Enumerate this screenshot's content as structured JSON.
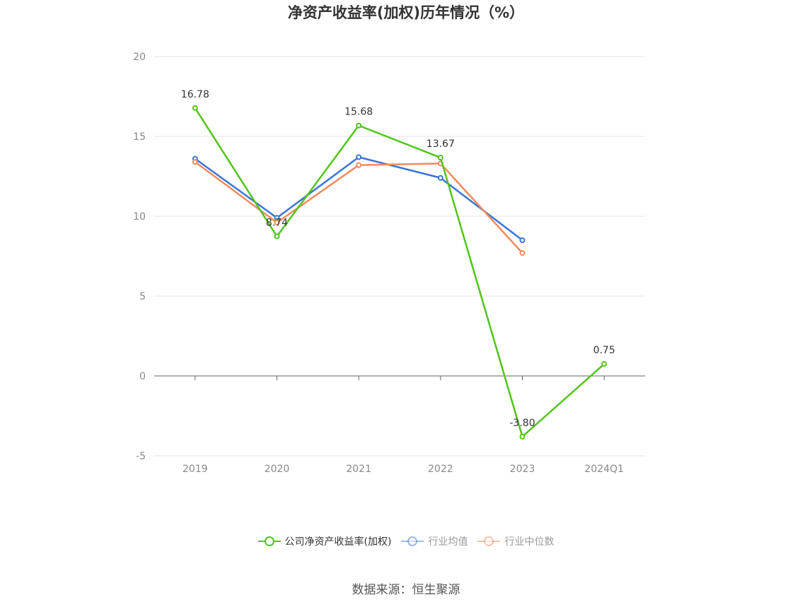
{
  "title": "净资产收益率(加权)历年情况（%）",
  "source": "数据来源：恒生聚源",
  "chart_data": {
    "type": "line",
    "categories": [
      "2019",
      "2020",
      "2021",
      "2022",
      "2023",
      "2024Q1"
    ],
    "ylim": [
      -5,
      20
    ],
    "yticks": [
      -5,
      0,
      5,
      10,
      15,
      20
    ],
    "grid": true,
    "legend_position": "bottom",
    "series": [
      {
        "name": "公司净资产收益率(加权)",
        "color": "#52c41a",
        "values": [
          16.78,
          8.74,
          15.68,
          13.67,
          -3.8,
          0.75
        ],
        "labels": [
          "16.78",
          "8.74",
          "15.68",
          "13.67",
          "-3.80",
          "0.75"
        ]
      },
      {
        "name": "行业均值",
        "color": "#3a75d8",
        "values": [
          13.6,
          9.9,
          13.7,
          12.4,
          8.5,
          null
        ]
      },
      {
        "name": "行业中位数",
        "color": "#f08a5d",
        "values": [
          13.4,
          9.6,
          13.2,
          13.3,
          7.7,
          null
        ]
      }
    ]
  }
}
